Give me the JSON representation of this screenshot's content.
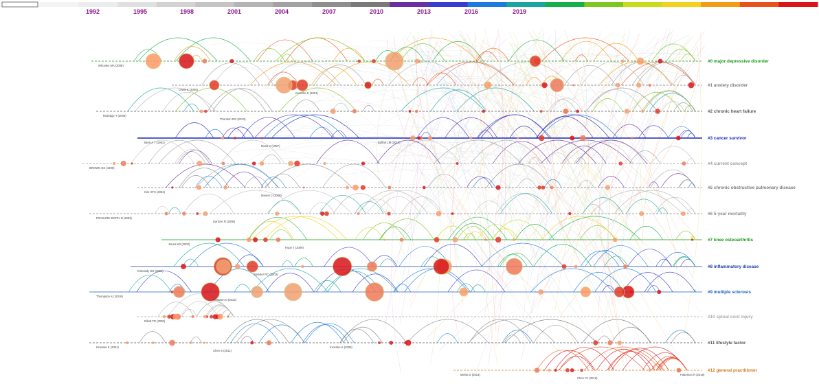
{
  "years": [
    "1992",
    "1995",
    "1998",
    "2001",
    "2004",
    "2007",
    "2010",
    "2013",
    "2016",
    "2019"
  ],
  "timeline_colors": [
    "#f4f4f4",
    "#ececec",
    "#e0e0e0",
    "#d2d2d2",
    "#c4c4c4",
    "#b4b4b4",
    "#a2a2a2",
    "#8e8e8e",
    "#7a7a7a",
    "#6a2fa5",
    "#3a3bd0",
    "#1d7be0",
    "#19a6a0",
    "#16b04a",
    "#7ec71f",
    "#c9dc1c",
    "#f2d21a",
    "#f39a17",
    "#e8521c",
    "#d9151a"
  ],
  "clusters": [
    {
      "label": "#0 major depressive disorder",
      "color": "#159a15"
    },
    {
      "label": "#1 anxiety disorder",
      "color": "#7a7a7a"
    },
    {
      "label": "#2 chronic heart failure",
      "color": "#555555"
    },
    {
      "label": "#3 cancer survivor",
      "color": "#1a26b5"
    },
    {
      "label": "#4 current concept",
      "color": "#9a9a9a"
    },
    {
      "label": "#5 chronic obstructive pulmonary disease",
      "color": "#7a7a7a"
    },
    {
      "label": "#6 5-year mortality",
      "color": "#8a8a8a"
    },
    {
      "label": "#7 knee osteoarthritis",
      "color": "#159a15"
    },
    {
      "label": "#8 inflammatory disease",
      "color": "#1a3ca8"
    },
    {
      "label": "#9 multiple sclerosis",
      "color": "#1a5fc0"
    },
    {
      "label": "#10 spinal cord injury",
      "color": "#aaaaaa"
    },
    {
      "label": "#11 lifestyle factor",
      "color": "#555555"
    },
    {
      "label": "#12 general practitioner",
      "color": "#d0781a"
    }
  ],
  "cited_refs": [
    {
      "text": "Whooley MA (2008)",
      "cluster": 0
    },
    {
      "text": "Lewis K (2006)",
      "cluster": 1
    },
    {
      "text": "Kroenke K (2001)",
      "cluster": 1
    },
    {
      "text": "Rutledge T (2006)",
      "cluster": 2
    },
    {
      "text": "Thornton RG (2013)",
      "cluster": 2
    },
    {
      "text": "Beck A T (1961)",
      "cluster": 3
    },
    {
      "text": "Moos V (1987)",
      "cluster": 3
    },
    {
      "text": "Buffart LM (2017)",
      "cluster": 3
    },
    {
      "text": "BROWN GK (1990)",
      "cluster": 4
    },
    {
      "text": "Kim HFS (2004)",
      "cluster": 5
    },
    {
      "text": "Maurer J (2008)",
      "cluster": 5
    },
    {
      "text": "FRASURE-SMITH N (1993)",
      "cluster": 6
    },
    {
      "text": "Dantzer R (2008)",
      "cluster": 6
    },
    {
      "text": "Jones KD (2002)",
      "cluster": 7
    },
    {
      "text": "Hope T (2009)",
      "cluster": 7
    },
    {
      "text": "Kirkcaldy GD (2002)",
      "cluster": 8
    },
    {
      "text": "Kessler RC (2003)",
      "cluster": 8
    },
    {
      "text": "Thompson AJ (2018)",
      "cluster": 9
    },
    {
      "text": "Rosseen N (2013)",
      "cluster": 9
    },
    {
      "text": "Elliott TR (2000)",
      "cluster": 10
    },
    {
      "text": "Kroenke K (2001)",
      "cluster": 11
    },
    {
      "text": "Chen S (2011)",
      "cluster": 11
    },
    {
      "text": "Kroenke K (2009)",
      "cluster": 11
    },
    {
      "text": "Mehta S (2014)",
      "cluster": 12
    },
    {
      "text": "Chen CJ (2016)",
      "cluster": 12
    },
    {
      "text": "Patterson R (2019)",
      "cluster": 12
    }
  ]
}
